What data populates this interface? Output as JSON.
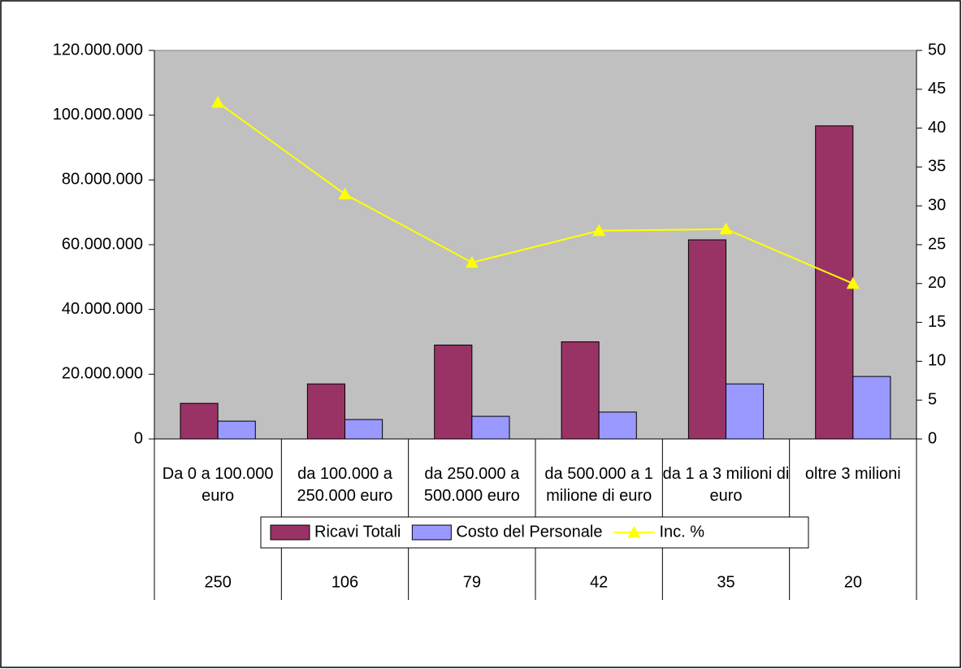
{
  "chart_data": {
    "type": "bar",
    "categories": [
      "Da 0 a 100.000 euro",
      "da 100.000 a 250.000 euro",
      "da 250.000 a 500.000 euro",
      "da 500.000 a 1 milione di euro",
      "da 1 a 3 milioni di euro",
      "oltre 3 milioni"
    ],
    "category_counts": [
      "250",
      "106",
      "79",
      "42",
      "35",
      "20"
    ],
    "series": [
      {
        "name": "Ricavi Totali",
        "color": "#993366",
        "values": [
          11000000,
          17000000,
          29000000,
          30000000,
          61500000,
          96700000
        ]
      },
      {
        "name": "Costo del Personale",
        "color": "#9999ff",
        "values": [
          5500000,
          6000000,
          7000000,
          8300000,
          17000000,
          19300000
        ]
      },
      {
        "name": "Inc. %",
        "color": "#ffff00",
        "type": "line",
        "axis": "y2",
        "values": [
          43.3,
          31.5,
          22.7,
          26.8,
          27.0,
          20.0
        ]
      }
    ],
    "ylim": [
      0,
      120000000
    ],
    "yticks": [
      0,
      {
        "value": 20000000,
        "label": "20.000.000"
      },
      {
        "value": 40000000,
        "label": "40.000.000"
      },
      {
        "value": 60000000,
        "label": "60.000.000"
      },
      {
        "value": 80000000,
        "label": "80.000.000"
      },
      {
        "value": 100000000,
        "label": "100.000.000"
      },
      {
        "value": 120000000,
        "label": "120.000.000"
      }
    ],
    "y2lim": [
      0,
      50
    ],
    "y2ticks": [
      0,
      5,
      10,
      15,
      20,
      25,
      30,
      35,
      40,
      45,
      50
    ],
    "grid": false,
    "plot_background": "#c0c0c0",
    "legend": "bottom"
  }
}
